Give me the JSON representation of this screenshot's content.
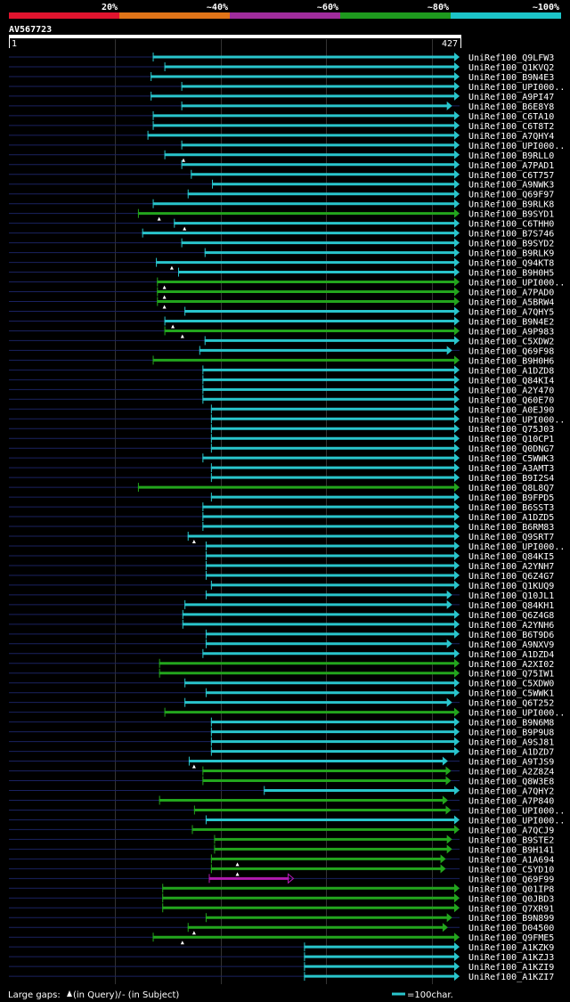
{
  "chart_data": {
    "type": "alignment_overview",
    "query_id": "AV567723",
    "query_start": 1,
    "query_end": 427,
    "identity_scale": [
      {
        "label": "20%",
        "color": "#e0142e"
      },
      {
        "label": "~40%",
        "color": "#e07418"
      },
      {
        "label": "~60%",
        "color": "#a02c9c"
      },
      {
        "label": "~80%",
        "color": "#1e9a1e"
      },
      {
        "label": "~100%",
        "color": "#1cc4c8"
      }
    ],
    "colors": {
      "cyan": "#29c5cc",
      "green": "#23a51d",
      "magenta": "#b11ab0",
      "query": "#1a2260",
      "grid": "#333333",
      "axis": "#ffffff"
    },
    "hits": [
      {
        "label": "UniRef100_Q9LFW3",
        "start": 137,
        "end": 427,
        "color": "cyan",
        "arrow": "filled",
        "gap_q": null
      },
      {
        "label": "UniRef100_Q1KVQ2",
        "start": 148,
        "end": 427,
        "color": "cyan",
        "arrow": "filled",
        "gap_q": null
      },
      {
        "label": "UniRef100_B9N4E3",
        "start": 135,
        "end": 427,
        "color": "cyan",
        "arrow": "filled",
        "gap_q": null
      },
      {
        "label": "UniRef100_UPI000..",
        "start": 164,
        "end": 427,
        "color": "cyan",
        "arrow": "filled",
        "gap_q": null
      },
      {
        "label": "UniRef100_A9PI47",
        "start": 135,
        "end": 427,
        "color": "cyan",
        "arrow": "filled",
        "gap_q": null
      },
      {
        "label": "UniRef100_B6E8Y8",
        "start": 164,
        "end": 420,
        "color": "cyan",
        "arrow": "filled",
        "gap_q": null
      },
      {
        "label": "UniRef100_C6TA10",
        "start": 137,
        "end": 427,
        "color": "cyan",
        "arrow": "filled",
        "gap_q": null
      },
      {
        "label": "UniRef100_C6T8T2",
        "start": 137,
        "end": 427,
        "color": "cyan",
        "arrow": "filled",
        "gap_q": null
      },
      {
        "label": "UniRef100_A7QHY4",
        "start": 132,
        "end": 427,
        "color": "cyan",
        "arrow": "filled",
        "gap_q": null
      },
      {
        "label": "UniRef100_UPI000..",
        "start": 164,
        "end": 427,
        "color": "cyan",
        "arrow": "filled",
        "gap_q": null
      },
      {
        "label": "UniRef100_B9RLL0",
        "start": 148,
        "end": 427,
        "color": "cyan",
        "arrow": "filled",
        "gap_q": 166
      },
      {
        "label": "UniRef100_A7PAD1",
        "start": 164,
        "end": 427,
        "color": "cyan",
        "arrow": "filled",
        "gap_q": null
      },
      {
        "label": "UniRef100_C6T757",
        "start": 173,
        "end": 427,
        "color": "cyan",
        "arrow": "filled",
        "gap_q": null
      },
      {
        "label": "UniRef100_A9NWK3",
        "start": 193,
        "end": 427,
        "color": "cyan",
        "arrow": "filled",
        "gap_q": null
      },
      {
        "label": "UniRef100_Q69F97",
        "start": 170,
        "end": 427,
        "color": "cyan",
        "arrow": "filled",
        "gap_q": null
      },
      {
        "label": "UniRef100_B9RLK8",
        "start": 137,
        "end": 427,
        "color": "cyan",
        "arrow": "filled",
        "gap_q": null
      },
      {
        "label": "UniRef100_B9SYD1",
        "start": 123,
        "end": 427,
        "color": "green",
        "arrow": "filled",
        "gap_q": 143
      },
      {
        "label": "UniRef100_C6THH0",
        "start": 157,
        "end": 427,
        "color": "cyan",
        "arrow": "filled",
        "gap_q": 167
      },
      {
        "label": "UniRef100_B7S746",
        "start": 127,
        "end": 427,
        "color": "cyan",
        "arrow": "filled",
        "gap_q": null
      },
      {
        "label": "UniRef100_B9SYD2",
        "start": 164,
        "end": 427,
        "color": "cyan",
        "arrow": "filled",
        "gap_q": null
      },
      {
        "label": "UniRef100_B9RLK9",
        "start": 186,
        "end": 427,
        "color": "cyan",
        "arrow": "filled",
        "gap_q": null
      },
      {
        "label": "UniRef100_Q94KT8",
        "start": 140,
        "end": 427,
        "color": "cyan",
        "arrow": "filled",
        "gap_q": 155
      },
      {
        "label": "UniRef100_B9H0H5",
        "start": 161,
        "end": 427,
        "color": "cyan",
        "arrow": "filled",
        "gap_q": null
      },
      {
        "label": "UniRef100_UPI000..",
        "start": 141,
        "end": 427,
        "color": "green",
        "arrow": "filled",
        "gap_q": 148
      },
      {
        "label": "UniRef100_A7PAD0",
        "start": 141,
        "end": 427,
        "color": "green",
        "arrow": "filled",
        "gap_q": 148
      },
      {
        "label": "UniRef100_A5BRW4",
        "start": 141,
        "end": 427,
        "color": "green",
        "arrow": "filled",
        "gap_q": 148
      },
      {
        "label": "UniRef100_A7QHY5",
        "start": 167,
        "end": 427,
        "color": "cyan",
        "arrow": "filled",
        "gap_q": null
      },
      {
        "label": "UniRef100_B9N4E2",
        "start": 148,
        "end": 427,
        "color": "cyan",
        "arrow": "filled",
        "gap_q": 156
      },
      {
        "label": "UniRef100_A9P983",
        "start": 148,
        "end": 427,
        "color": "green",
        "arrow": "filled",
        "gap_q": 165
      },
      {
        "label": "UniRef100_C5XDW2",
        "start": 186,
        "end": 427,
        "color": "cyan",
        "arrow": "filled",
        "gap_q": null
      },
      {
        "label": "UniRef100_Q69F98",
        "start": 181,
        "end": 420,
        "color": "cyan",
        "arrow": "filled",
        "gap_q": null
      },
      {
        "label": "UniRef100_B9H0H6",
        "start": 137,
        "end": 427,
        "color": "green",
        "arrow": "filled",
        "gap_q": null
      },
      {
        "label": "UniRef100_A1DZD8",
        "start": 184,
        "end": 427,
        "color": "cyan",
        "arrow": "filled",
        "gap_q": null
      },
      {
        "label": "UniRef100_Q84KI4",
        "start": 184,
        "end": 427,
        "color": "cyan",
        "arrow": "filled",
        "gap_q": null
      },
      {
        "label": "UniRef100_A2Y470",
        "start": 184,
        "end": 427,
        "color": "cyan",
        "arrow": "filled",
        "gap_q": null
      },
      {
        "label": "UniRef100_Q60E70",
        "start": 184,
        "end": 427,
        "color": "cyan",
        "arrow": "filled",
        "gap_q": null
      },
      {
        "label": "UniRef100_A0EJ90",
        "start": 192,
        "end": 427,
        "color": "cyan",
        "arrow": "filled",
        "gap_q": null
      },
      {
        "label": "UniRef100_UPI000..",
        "start": 192,
        "end": 427,
        "color": "cyan",
        "arrow": "filled",
        "gap_q": null
      },
      {
        "label": "UniRef100_Q75J03",
        "start": 192,
        "end": 427,
        "color": "cyan",
        "arrow": "filled",
        "gap_q": null
      },
      {
        "label": "UniRef100_Q10CP1",
        "start": 192,
        "end": 427,
        "color": "cyan",
        "arrow": "filled",
        "gap_q": null
      },
      {
        "label": "UniRef100_Q0DNG7",
        "start": 192,
        "end": 427,
        "color": "cyan",
        "arrow": "filled",
        "gap_q": null
      },
      {
        "label": "UniRef100_C5WWK3",
        "start": 184,
        "end": 427,
        "color": "cyan",
        "arrow": "filled",
        "gap_q": null
      },
      {
        "label": "UniRef100_A3AMT3",
        "start": 192,
        "end": 427,
        "color": "cyan",
        "arrow": "filled",
        "gap_q": null
      },
      {
        "label": "UniRef100_B9I2S4",
        "start": 192,
        "end": 427,
        "color": "cyan",
        "arrow": "filled",
        "gap_q": null
      },
      {
        "label": "UniRef100_Q8L8Q7",
        "start": 123,
        "end": 427,
        "color": "green",
        "arrow": "filled",
        "gap_q": null
      },
      {
        "label": "UniRef100_B9FPD5",
        "start": 192,
        "end": 427,
        "color": "cyan",
        "arrow": "filled",
        "gap_q": null
      },
      {
        "label": "UniRef100_B6SST3",
        "start": 184,
        "end": 427,
        "color": "cyan",
        "arrow": "filled",
        "gap_q": null
      },
      {
        "label": "UniRef100_A1DZD5",
        "start": 184,
        "end": 427,
        "color": "cyan",
        "arrow": "filled",
        "gap_q": null
      },
      {
        "label": "UniRef100_B6RM83",
        "start": 184,
        "end": 427,
        "color": "cyan",
        "arrow": "filled",
        "gap_q": null
      },
      {
        "label": "UniRef100_Q9SRT7",
        "start": 170,
        "end": 427,
        "color": "cyan",
        "arrow": "filled",
        "gap_q": 176
      },
      {
        "label": "UniRef100_UPI000..",
        "start": 187,
        "end": 427,
        "color": "cyan",
        "arrow": "filled",
        "gap_q": null
      },
      {
        "label": "UniRef100_Q84KI5",
        "start": 187,
        "end": 427,
        "color": "cyan",
        "arrow": "filled",
        "gap_q": null
      },
      {
        "label": "UniRef100_A2YNH7",
        "start": 187,
        "end": 427,
        "color": "cyan",
        "arrow": "filled",
        "gap_q": null
      },
      {
        "label": "UniRef100_Q6Z4G7",
        "start": 187,
        "end": 427,
        "color": "cyan",
        "arrow": "filled",
        "gap_q": null
      },
      {
        "label": "UniRef100_Q1KUQ9",
        "start": 192,
        "end": 427,
        "color": "cyan",
        "arrow": "filled",
        "gap_q": null
      },
      {
        "label": "UniRef100_Q10JL1",
        "start": 187,
        "end": 420,
        "color": "cyan",
        "arrow": "filled",
        "gap_q": null
      },
      {
        "label": "UniRef100_Q84KH1",
        "start": 167,
        "end": 420,
        "color": "cyan",
        "arrow": "filled",
        "gap_q": null
      },
      {
        "label": "UniRef100_Q6Z4G8",
        "start": 165,
        "end": 427,
        "color": "cyan",
        "arrow": "filled",
        "gap_q": null
      },
      {
        "label": "UniRef100_A2YNH6",
        "start": 165,
        "end": 427,
        "color": "cyan",
        "arrow": "filled",
        "gap_q": null
      },
      {
        "label": "UniRef100_B6T9D6",
        "start": 187,
        "end": 427,
        "color": "cyan",
        "arrow": "filled",
        "gap_q": null
      },
      {
        "label": "UniRef100_A9NXV9",
        "start": 187,
        "end": 420,
        "color": "cyan",
        "arrow": "filled",
        "gap_q": null
      },
      {
        "label": "UniRef100_A1DZD4",
        "start": 184,
        "end": 427,
        "color": "cyan",
        "arrow": "filled",
        "gap_q": null
      },
      {
        "label": "UniRef100_A2XI02",
        "start": 143,
        "end": 427,
        "color": "green",
        "arrow": "filled",
        "gap_q": null
      },
      {
        "label": "UniRef100_Q75IW1",
        "start": 143,
        "end": 427,
        "color": "green",
        "arrow": "filled",
        "gap_q": null
      },
      {
        "label": "UniRef100_C5XDW0",
        "start": 167,
        "end": 427,
        "color": "cyan",
        "arrow": "filled",
        "gap_q": null
      },
      {
        "label": "UniRef100_C5WWK1",
        "start": 187,
        "end": 427,
        "color": "cyan",
        "arrow": "filled",
        "gap_q": null
      },
      {
        "label": "UniRef100_Q6T252",
        "start": 167,
        "end": 420,
        "color": "cyan",
        "arrow": "filled",
        "gap_q": null
      },
      {
        "label": "UniRef100_UPI000..",
        "start": 148,
        "end": 427,
        "color": "green",
        "arrow": "filled",
        "gap_q": null
      },
      {
        "label": "UniRef100_B9N6M8",
        "start": 192,
        "end": 427,
        "color": "cyan",
        "arrow": "filled",
        "gap_q": null
      },
      {
        "label": "UniRef100_B9P9U8",
        "start": 192,
        "end": 427,
        "color": "cyan",
        "arrow": "filled",
        "gap_q": null
      },
      {
        "label": "UniRef100_A9SJ81",
        "start": 192,
        "end": 427,
        "color": "cyan",
        "arrow": "filled",
        "gap_q": null
      },
      {
        "label": "UniRef100_A1DZD7",
        "start": 192,
        "end": 427,
        "color": "cyan",
        "arrow": "filled",
        "gap_q": null
      },
      {
        "label": "UniRef100_A9TJS9",
        "start": 171,
        "end": 416,
        "color": "cyan",
        "arrow": "filled",
        "gap_q": 176
      },
      {
        "label": "UniRef100_A2Z8Z4",
        "start": 184,
        "end": 419,
        "color": "green",
        "arrow": "filled",
        "gap_q": null
      },
      {
        "label": "UniRef100_Q8W3E8",
        "start": 184,
        "end": 419,
        "color": "green",
        "arrow": "filled",
        "gap_q": null
      },
      {
        "label": "UniRef100_A7QHY2",
        "start": 242,
        "end": 427,
        "color": "cyan",
        "arrow": "filled",
        "gap_q": null
      },
      {
        "label": "UniRef100_A7P840",
        "start": 143,
        "end": 416,
        "color": "green",
        "arrow": "filled",
        "gap_q": null
      },
      {
        "label": "UniRef100_UPI000..",
        "start": 176,
        "end": 419,
        "color": "green",
        "arrow": "filled",
        "gap_q": null
      },
      {
        "label": "UniRef100_UPI000..",
        "start": 187,
        "end": 427,
        "color": "cyan",
        "arrow": "filled",
        "gap_q": null
      },
      {
        "label": "UniRef100_A7QCJ9",
        "start": 174,
        "end": 427,
        "color": "green",
        "arrow": "filled",
        "gap_q": null
      },
      {
        "label": "UniRef100_B9STE2",
        "start": 195,
        "end": 420,
        "color": "green",
        "arrow": "filled",
        "gap_q": null
      },
      {
        "label": "UniRef100_B9H141",
        "start": 195,
        "end": 420,
        "color": "green",
        "arrow": "filled",
        "gap_q": null
      },
      {
        "label": "UniRef100_A1A694",
        "start": 192,
        "end": 414,
        "color": "green",
        "arrow": "filled",
        "gap_q": 217
      },
      {
        "label": "UniRef100_C5YD10",
        "start": 192,
        "end": 414,
        "color": "green",
        "arrow": "filled",
        "gap_q": 217
      },
      {
        "label": "UniRef100_Q69F99",
        "start": 190,
        "end": 270,
        "color": "magenta",
        "arrow": "outline",
        "gap_q": null
      },
      {
        "label": "UniRef100_Q01IP8",
        "start": 146,
        "end": 427,
        "color": "green",
        "arrow": "filled",
        "gap_q": null
      },
      {
        "label": "UniRef100_Q0JBD3",
        "start": 146,
        "end": 427,
        "color": "green",
        "arrow": "filled",
        "gap_q": null
      },
      {
        "label": "UniRef100_Q7XR91",
        "start": 146,
        "end": 427,
        "color": "green",
        "arrow": "filled",
        "gap_q": null
      },
      {
        "label": "UniRef100_B9N899",
        "start": 187,
        "end": 420,
        "color": "green",
        "arrow": "filled",
        "gap_q": null
      },
      {
        "label": "UniRef100_D04500",
        "start": 170,
        "end": 416,
        "color": "green",
        "arrow": "filled",
        "gap_q": 176
      },
      {
        "label": "UniRef100_Q9FME5",
        "start": 137,
        "end": 427,
        "color": "green",
        "arrow": "filled",
        "gap_q": 165
      },
      {
        "label": "UniRef100_A1KZK9",
        "start": 280,
        "end": 427,
        "color": "cyan",
        "arrow": "filled",
        "gap_q": null
      },
      {
        "label": "UniRef100_A1KZJ3",
        "start": 280,
        "end": 427,
        "color": "cyan",
        "arrow": "filled",
        "gap_q": null
      },
      {
        "label": "UniRef100_A1KZI9",
        "start": 280,
        "end": 427,
        "color": "cyan",
        "arrow": "filled",
        "gap_q": null
      },
      {
        "label": "UniRef100_A1KZI7",
        "start": 280,
        "end": 427,
        "color": "cyan",
        "arrow": "filled",
        "gap_q": null
      }
    ],
    "footer": {
      "gaps_label": "Large gaps:",
      "gaps_query": "(in Query)/",
      "gaps_subject": "- (in Subject)",
      "scale_label": "=100char."
    }
  }
}
